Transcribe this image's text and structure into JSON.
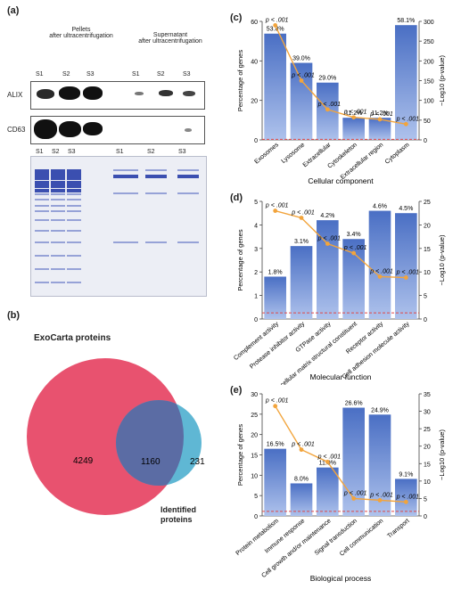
{
  "panel_labels": {
    "a": "(a)",
    "b": "(b)",
    "c": "(c)",
    "d": "(d)",
    "e": "(e)"
  },
  "panel_a": {
    "pellets_title_line1": "Pellets",
    "pellets_title_line2": "after ultracentrifugation",
    "supernatant_title_line1": "Supernatant",
    "supernatant_title_line2": "after ultracentrifugation",
    "lanes": [
      "S1",
      "S2",
      "S3",
      "S1",
      "S2",
      "S3"
    ],
    "blot_rows": [
      "ALIX",
      "CD63"
    ]
  },
  "panel_b": {
    "title": "ExoCarta proteins",
    "only_exocarta": "4249",
    "overlap": "1160",
    "only_identified": "231",
    "identified_label_line1": "Identified",
    "identified_label_line2": "proteins",
    "colors": {
      "exocarta": "#e8526f",
      "identified": "#5fb7d4",
      "overlap": "#5b5f9b"
    }
  },
  "colors": {
    "bar_top": "#4a6fc4",
    "bar_bottom": "#aec2ec",
    "pvalue_line": "#f2a43c",
    "threshold_line": "#e04848"
  },
  "chart_data": [
    {
      "type": "bar",
      "title": "Cellular component",
      "categories": [
        "Exosomes",
        "Lysosome",
        "Extracellular",
        "Cytoskeleton",
        "Extracellular region",
        "Cytoplasm"
      ],
      "values": [
        53.8,
        39.0,
        29.0,
        11.2,
        11.2,
        58.1
      ],
      "value_labels": [
        "53.8%",
        "39.0%",
        "29.0%",
        "11.2%",
        "11.2%",
        "58.1%"
      ],
      "neglog10_p": [
        290,
        150,
        77,
        57,
        52,
        40
      ],
      "p_labels": [
        "p < .001",
        "p < .001",
        "p < .001",
        "p < .001",
        "p < .001",
        "p < .001"
      ],
      "ylabel": "Percentage of genes",
      "y2label": "−Log10 (p-value)",
      "ylim": [
        0,
        60
      ],
      "y2lim": [
        0,
        300
      ],
      "yticks": [
        "0",
        "20",
        "40",
        "60"
      ],
      "y2ticks": [
        "0",
        "50",
        "100",
        "150",
        "200",
        "250",
        "300"
      ]
    },
    {
      "type": "bar",
      "title": "Molecular function",
      "categories": [
        "Complement activity",
        "Protease inhibitor activity",
        "GTPase activity",
        "Extracellular matrix structural constituent",
        "Receptor activity",
        "Cell adhesion molecule activity"
      ],
      "values": [
        1.8,
        3.1,
        4.2,
        3.4,
        4.6,
        4.5
      ],
      "value_labels": [
        "1.8%",
        "3.1%",
        "4.2%",
        "3.4%",
        "4.6%",
        "4.5%"
      ],
      "neglog10_p": [
        23,
        21.5,
        16,
        14,
        9,
        8.8
      ],
      "p_labels": [
        "p < .001",
        "p < .001",
        "p < .001",
        "p < .001",
        "p < .001",
        "p < .001"
      ],
      "ylabel": "Percentage of genes",
      "y2label": "−Log10 (p-value)",
      "ylim": [
        0,
        5
      ],
      "y2lim": [
        0,
        25
      ],
      "yticks": [
        "0",
        "1",
        "2",
        "3",
        "4",
        "5"
      ],
      "y2ticks": [
        "0",
        "5",
        "10",
        "15",
        "20",
        "25"
      ]
    },
    {
      "type": "bar",
      "title": "Biological process",
      "categories": [
        "Protein metabolism",
        "Immune response",
        "Cell growth and/or maintenance",
        "Signal transduction",
        "Cell communication",
        "Transport"
      ],
      "values": [
        16.5,
        8.0,
        11.9,
        26.6,
        24.9,
        9.1
      ],
      "value_labels": [
        "16.5%",
        "8.0%",
        "11.9%",
        "26.6%",
        "24.9%",
        "9.1%"
      ],
      "neglog10_p": [
        31.5,
        19,
        15.5,
        5,
        4.5,
        4
      ],
      "p_labels": [
        "p < .001",
        "p < .001",
        "p < .001",
        "p < .001",
        "p < .001",
        "p < .001"
      ],
      "ylabel": "Percentage of genes",
      "y2label": "−Log10 (p-value)",
      "ylim": [
        0,
        30
      ],
      "y2lim": [
        0,
        35
      ],
      "yticks": [
        "0",
        "5",
        "10",
        "15",
        "20",
        "25",
        "30"
      ],
      "y2ticks": [
        "0",
        "5",
        "10",
        "15",
        "20",
        "25",
        "30",
        "35"
      ]
    }
  ]
}
